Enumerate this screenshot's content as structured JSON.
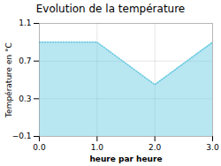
{
  "chart_data": {
    "type": "area",
    "title": "Evolution de la température",
    "xlabel": "heure par heure",
    "ylabel": "Température en °C",
    "x": [
      0,
      1,
      2,
      3
    ],
    "values": [
      0.9,
      0.9,
      0.45,
      0.9
    ],
    "color": "#62c8e0",
    "line_style": "dotted",
    "xlim": [
      0,
      3
    ],
    "ylim": [
      -0.1,
      1.1
    ],
    "xticks": [
      0,
      1,
      2,
      3
    ],
    "yticks": [
      -0.1,
      0.3,
      0.7,
      1.1
    ],
    "grid": true
  }
}
